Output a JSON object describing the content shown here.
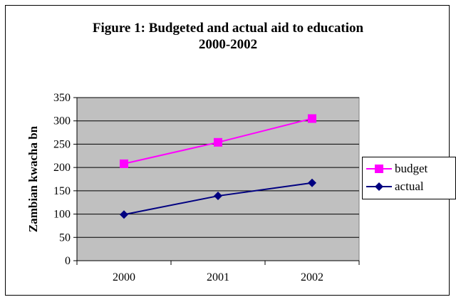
{
  "chart_data": {
    "type": "line",
    "title": "Figure 1: Budgeted and actual aid to education",
    "subtitle": "2000-2002",
    "xlabel": "",
    "ylabel": "Zambian kwacha bn",
    "categories": [
      "2000",
      "2001",
      "2002"
    ],
    "ylim": [
      0,
      350
    ],
    "yticks": [
      0,
      50,
      100,
      150,
      200,
      250,
      300,
      350
    ],
    "grid": true,
    "legend_position": "right",
    "series": [
      {
        "name": "budget",
        "values": [
          208,
          254,
          305
        ],
        "color": "#ff00ff",
        "marker": "square"
      },
      {
        "name": "actual",
        "values": [
          99,
          139,
          167
        ],
        "color": "#000080",
        "marker": "diamond"
      }
    ],
    "plot_background": "#c0c0c0"
  }
}
